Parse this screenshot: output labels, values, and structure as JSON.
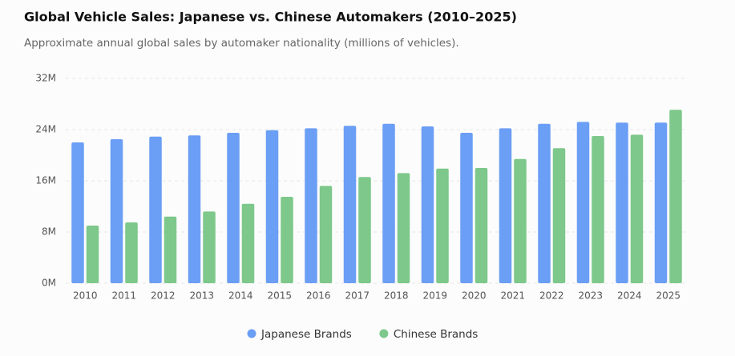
{
  "chart_data": {
    "type": "bar",
    "title": "Global Vehicle Sales: Japanese vs. Chinese Automakers (2010–2025)",
    "subtitle": "Approximate annual global sales by automaker nationality (millions of vehicles).",
    "categories": [
      "2010",
      "2011",
      "2012",
      "2013",
      "2014",
      "2015",
      "2016",
      "2017",
      "2018",
      "2019",
      "2020",
      "2021",
      "2022",
      "2023",
      "2024",
      "2025"
    ],
    "series": [
      {
        "name": "Japanese Brands",
        "color": "#6b9ef5",
        "values": [
          22.0,
          22.5,
          22.9,
          23.1,
          23.5,
          23.9,
          24.2,
          24.6,
          24.9,
          24.5,
          23.5,
          24.2,
          24.9,
          25.2,
          25.1,
          25.1
        ]
      },
      {
        "name": "Chinese Brands",
        "color": "#7dc88a",
        "values": [
          9.0,
          9.5,
          10.4,
          11.2,
          12.4,
          13.5,
          15.2,
          16.6,
          17.2,
          17.9,
          18.0,
          19.4,
          21.1,
          23.0,
          23.2,
          27.1
        ]
      }
    ],
    "ylim": [
      0,
      32
    ],
    "yticks": [
      {
        "value": 0,
        "label": "0M"
      },
      {
        "value": 8,
        "label": "8M"
      },
      {
        "value": 16,
        "label": "16M"
      },
      {
        "value": 24,
        "label": "24M"
      },
      {
        "value": 32,
        "label": "32M"
      }
    ],
    "grid": true,
    "legend": "bottom"
  }
}
